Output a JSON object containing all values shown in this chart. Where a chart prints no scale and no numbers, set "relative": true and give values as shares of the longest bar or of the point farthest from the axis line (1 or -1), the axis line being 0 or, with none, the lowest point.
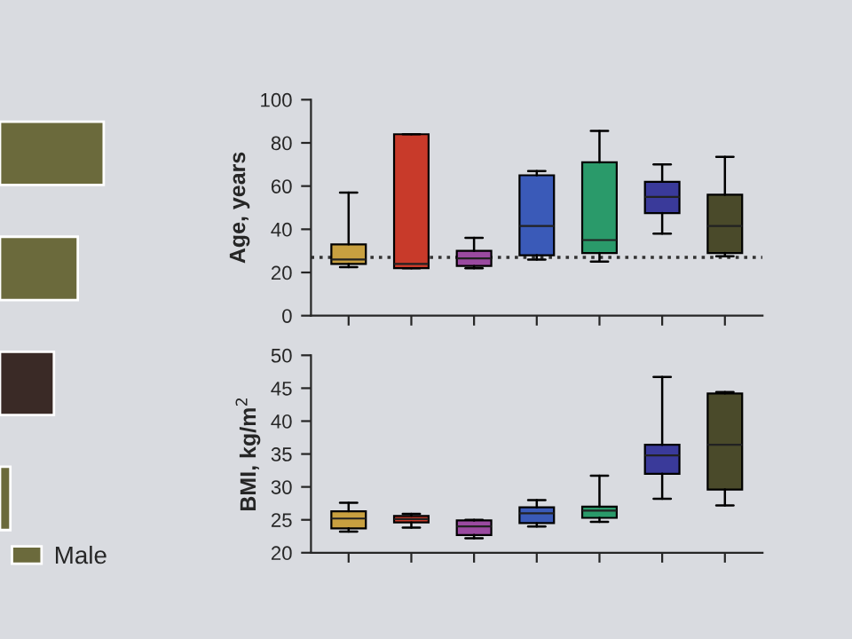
{
  "chart_data": [
    {
      "type": "bar",
      "orientation": "horizontal",
      "relative": true,
      "categories": [
        null,
        null,
        null,
        null
      ],
      "legend": "bottom",
      "tick_labels": false,
      "series": [
        {
          "name": "Male",
          "color": "#6b6a3c",
          "colors": [
            "#6b6a3c",
            "#6b6a3c",
            "#3a2a26",
            "#6b6a3c"
          ],
          "values": [
            1,
            0.75,
            0.52,
            0.1
          ]
        }
      ]
    },
    {
      "type": "box",
      "ylabel": "Age, years",
      "categories": [
        null,
        null,
        null,
        null,
        null,
        null,
        null
      ],
      "ylim": [
        0,
        100
      ],
      "yticks": [
        0,
        20,
        40,
        60,
        80,
        100
      ],
      "tick_labels": "y",
      "colors": [
        "#c8a040",
        "#c83a2a",
        "#9a4aa0",
        "#3a5ab8",
        "#2a9a6a",
        "#3a3a9a",
        "#4a4a2a"
      ],
      "ref_lines": [
        {
          "axis": "y",
          "value": 27,
          "line_style": "dotted",
          "color": "#333333"
        }
      ],
      "boxes": [
        {
          "low": 22.5,
          "q1": 24,
          "median": 26,
          "q3": 33,
          "high": 57
        },
        {
          "low": 22,
          "q1": 22,
          "median": 24,
          "q3": 84,
          "high": 84
        },
        {
          "low": 22,
          "q1": 23,
          "median": 26.5,
          "q3": 30,
          "high": 36
        },
        {
          "low": 26,
          "q1": 28,
          "median": 41.5,
          "q3": 65,
          "high": 67
        },
        {
          "low": 25,
          "q1": 29,
          "median": 35,
          "q3": 71,
          "high": 85.5
        },
        {
          "low": 38,
          "q1": 47.5,
          "median": 55,
          "q3": 62,
          "high": 70
        },
        {
          "low": 27.5,
          "q1": 29,
          "median": 41.5,
          "q3": 56,
          "high": 73.5
        }
      ]
    },
    {
      "type": "box",
      "ylabel": "BMI, kg/m$^{2}$",
      "categories": [
        null,
        null,
        null,
        null,
        null,
        null,
        null
      ],
      "ylim": [
        20,
        50
      ],
      "yticks": [
        20,
        25,
        30,
        35,
        40,
        45,
        50
      ],
      "tick_labels": "y",
      "colors": [
        "#c8a040",
        "#c83a2a",
        "#9a4aa0",
        "#3a5ab8",
        "#2a9a6a",
        "#3a3a9a",
        "#4a4a2a"
      ],
      "boxes": [
        {
          "low": 23.2,
          "q1": 23.7,
          "median": 25.2,
          "q3": 26.3,
          "high": 27.6
        },
        {
          "low": 23.8,
          "q1": 24.6,
          "median": 25.1,
          "q3": 25.6,
          "high": 25.9
        },
        {
          "low": 22.2,
          "q1": 22.7,
          "median": 24,
          "q3": 24.9,
          "high": 25
        },
        {
          "low": 24,
          "q1": 24.5,
          "median": 26,
          "q3": 26.9,
          "high": 28
        },
        {
          "low": 24.7,
          "q1": 25.3,
          "median": 26.4,
          "q3": 27,
          "high": 31.7
        },
        {
          "low": 28.2,
          "q1": 32,
          "median": 34.8,
          "q3": 36.4,
          "high": 46.7
        },
        {
          "low": 27.2,
          "q1": 29.6,
          "median": 36.4,
          "q3": 44.2,
          "high": 44.4
        }
      ]
    }
  ]
}
